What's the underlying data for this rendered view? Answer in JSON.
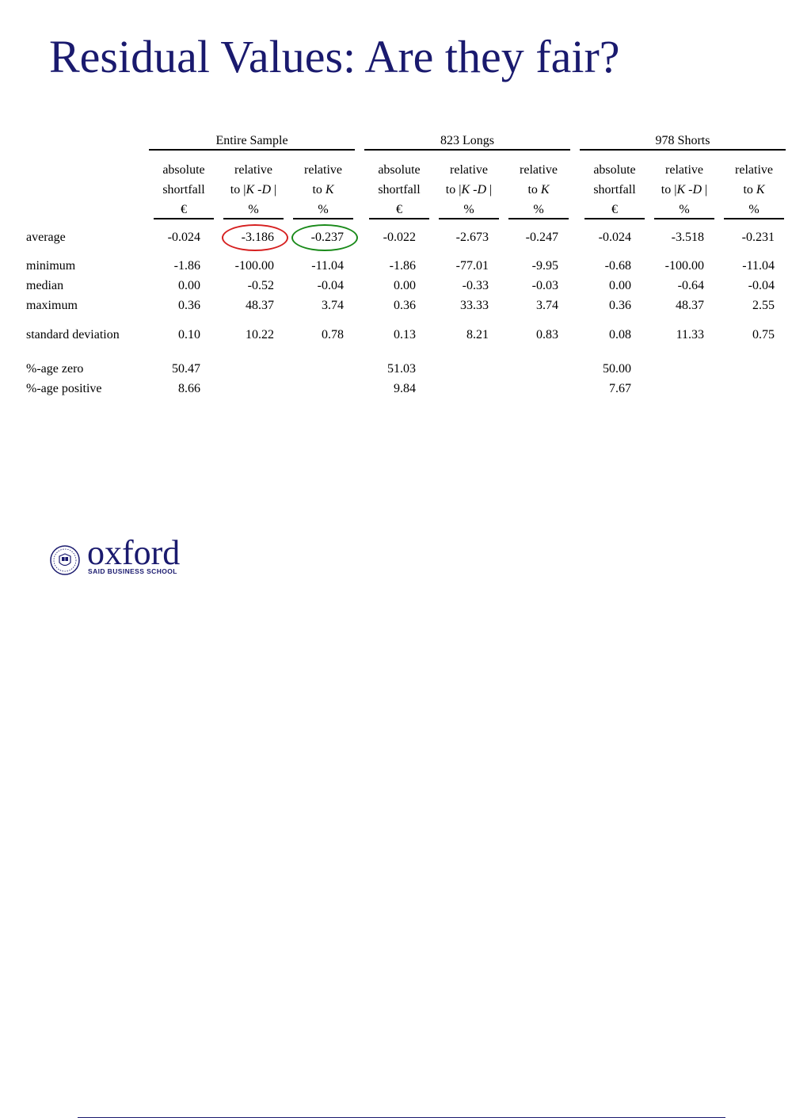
{
  "title": "Residual Values: Are they fair?",
  "groups": [
    "Entire Sample",
    "823 Longs",
    "978 Shorts"
  ],
  "column_headers": [
    [
      "absolute",
      "shortfall",
      "€"
    ],
    [
      "relative",
      "to |K -D |",
      "%"
    ],
    [
      "relative",
      "to K",
      "%"
    ]
  ],
  "rows": [
    {
      "label": "average",
      "values": [
        "-0.024",
        "-3.186",
        "-0.237",
        "-0.022",
        "-2.673",
        "-0.247",
        "-0.024",
        "-3.518",
        "-0.231"
      ]
    },
    {
      "label": "minimum",
      "values": [
        "-1.86",
        "-100.00",
        "-11.04",
        "-1.86",
        "-77.01",
        "-9.95",
        "-0.68",
        "-100.00",
        "-11.04"
      ]
    },
    {
      "label": "median",
      "values": [
        "0.00",
        "-0.52",
        "-0.04",
        "0.00",
        "-0.33",
        "-0.03",
        "0.00",
        "-0.64",
        "-0.04"
      ]
    },
    {
      "label": "maximum",
      "values": [
        "0.36",
        "48.37",
        "3.74",
        "0.36",
        "33.33",
        "3.74",
        "0.36",
        "48.37",
        "2.55"
      ]
    },
    {
      "label": "standard deviation",
      "values": [
        "0.10",
        "10.22",
        "0.78",
        "0.13",
        "8.21",
        "0.83",
        "0.08",
        "11.33",
        "0.75"
      ]
    },
    {
      "label": "%-age zero",
      "values": [
        "50.47",
        "",
        "",
        "51.03",
        "",
        "",
        "50.00",
        "",
        ""
      ]
    },
    {
      "label": "%-age positive",
      "values": [
        "8.66",
        "",
        "",
        "9.84",
        "",
        "",
        "7.67",
        "",
        ""
      ]
    }
  ],
  "highlights": [
    {
      "row": 0,
      "col": 1,
      "color": "#d62020"
    },
    {
      "row": 0,
      "col": 2,
      "color": "#1a8a1a"
    }
  ],
  "footer": {
    "logo_text": "oxford",
    "logo_subtitle": "SAID BUSINESS SCHOOL",
    "crest_icon": "university-crest-icon",
    "accent_color": "#1a1a6e"
  }
}
